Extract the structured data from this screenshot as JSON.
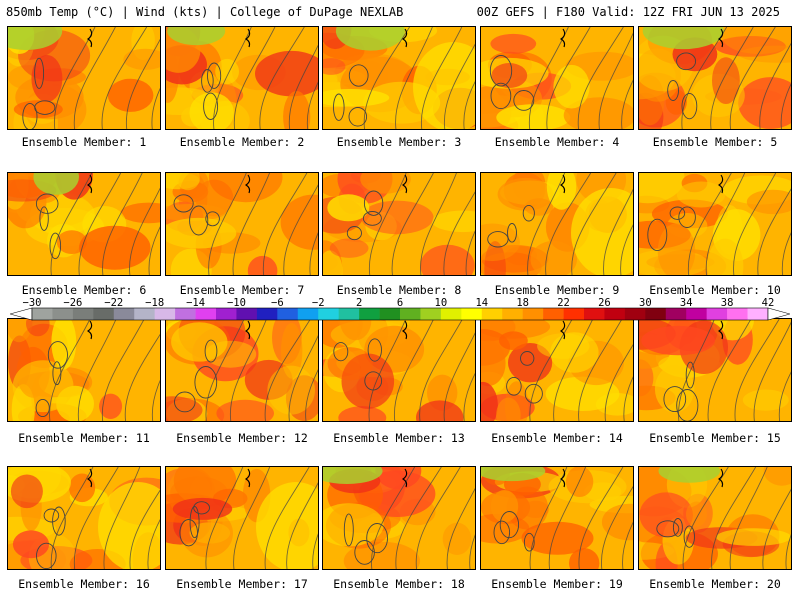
{
  "header": {
    "left": "850mb Temp (°C) | Wind (kts) | College of DuPage NEXLAB",
    "right": "00Z GEFS | F180 Valid: 12Z FRI JUN 13 2025"
  },
  "panel_label_prefix": "Ensemble Member:",
  "members": [
    "1",
    "2",
    "3",
    "4",
    "5",
    "6",
    "7",
    "8",
    "9",
    "10",
    "11",
    "12",
    "13",
    "14",
    "15",
    "16",
    "17",
    "18",
    "19",
    "20"
  ],
  "colorbar": {
    "labels": [
      "−30",
      "−26",
      "−22",
      "−18",
      "−14",
      "−10",
      "−6",
      "−2",
      "2",
      "6",
      "10",
      "14",
      "18",
      "22",
      "26",
      "30",
      "34",
      "38",
      "42"
    ],
    "colors": [
      "#9fa39f",
      "#8c908c",
      "#7a7e7a",
      "#686c68",
      "#8a8a9a",
      "#b4b4c8",
      "#d8b8e8",
      "#c070e0",
      "#e040f0",
      "#a020d0",
      "#6010b0",
      "#2020c0",
      "#2060e0",
      "#10a0f0",
      "#20d0e0",
      "#20c0a0",
      "#10a040",
      "#209020",
      "#60b020",
      "#a0d020",
      "#e0f000",
      "#ffff00",
      "#ffd000",
      "#ffb000",
      "#ff9000",
      "#ff6000",
      "#ff3000",
      "#e01010",
      "#c00010",
      "#a00010",
      "#800010",
      "#a00060",
      "#c000a0",
      "#e040e0",
      "#ff70f0",
      "#ffb0ff"
    ]
  }
}
